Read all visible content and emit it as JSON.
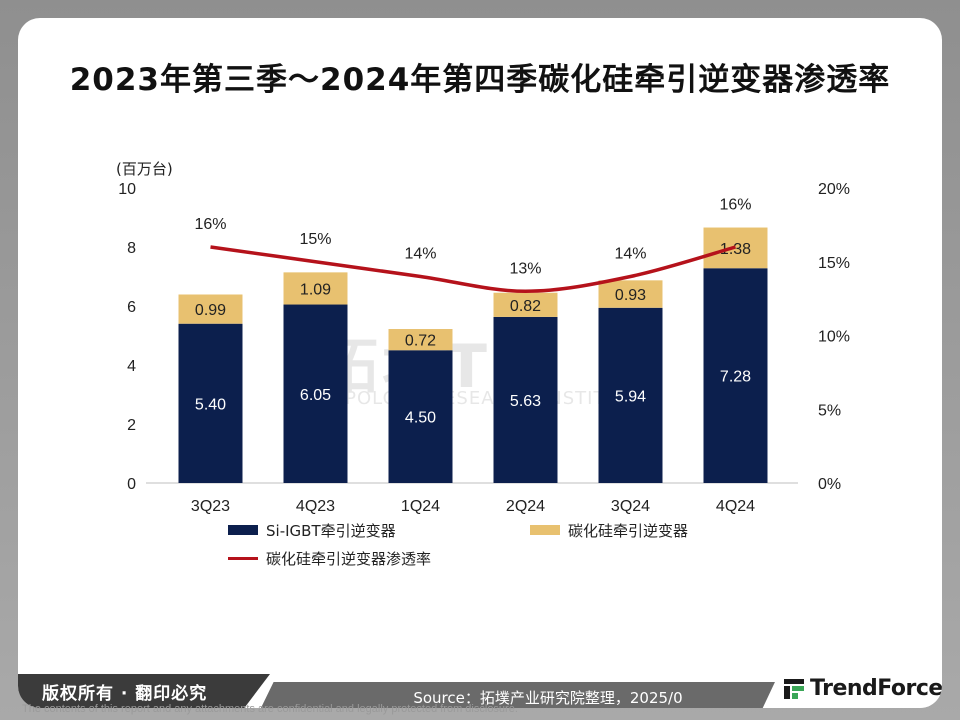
{
  "title": "2023年第三季～2024年第四季碳化硅牵引逆变器渗透率",
  "chart_data": {
    "type": "bar",
    "stacked": true,
    "categories": [
      "3Q23",
      "4Q23",
      "1Q24",
      "2Q24",
      "3Q24",
      "4Q24"
    ],
    "series": [
      {
        "name": "Si-IGBT牵引逆变器",
        "type": "bar",
        "axis": "left",
        "color": "#0c1f4d",
        "values": [
          5.4,
          6.05,
          4.5,
          5.63,
          5.94,
          7.28
        ],
        "labels": [
          "5.40",
          "6.05",
          "4.50",
          "5.63",
          "5.94",
          "7.28"
        ]
      },
      {
        "name": "碳化硅牵引逆变器",
        "type": "bar",
        "axis": "left",
        "color": "#e8c170",
        "values": [
          0.99,
          1.09,
          0.72,
          0.82,
          0.93,
          1.38
        ],
        "labels": [
          "0.99",
          "1.09",
          "0.72",
          "0.82",
          "0.93",
          "1.38"
        ]
      },
      {
        "name": "碳化硅牵引逆变器渗透率",
        "type": "line",
        "axis": "right",
        "color": "#b5121b",
        "values": [
          16,
          15,
          14,
          13,
          14,
          16
        ],
        "labels": [
          "16%",
          "15%",
          "14%",
          "13%",
          "14%",
          "16%"
        ]
      }
    ],
    "y_left": {
      "unit_label": "(百万台)",
      "range": [
        0,
        10
      ],
      "ticks": [
        "0",
        "2",
        "4",
        "6",
        "8",
        "10"
      ]
    },
    "y_right": {
      "range": [
        0,
        20
      ],
      "ticks": [
        "0%",
        "5%",
        "10%",
        "15%",
        "20%"
      ]
    },
    "legend_position": "bottom"
  },
  "watermark": {
    "main": "拓墣TRi",
    "sub": "TOPOLOGY RESEARCH INSTITUTE"
  },
  "footer": {
    "rights": "版权所有 · 翻印必究",
    "source": "Source：拓墣产业研究院整理，2025/0",
    "brand": "TrendForce",
    "disclaimer": "The contents of this report and any attachments are confidential and legally protected from disclosure."
  }
}
